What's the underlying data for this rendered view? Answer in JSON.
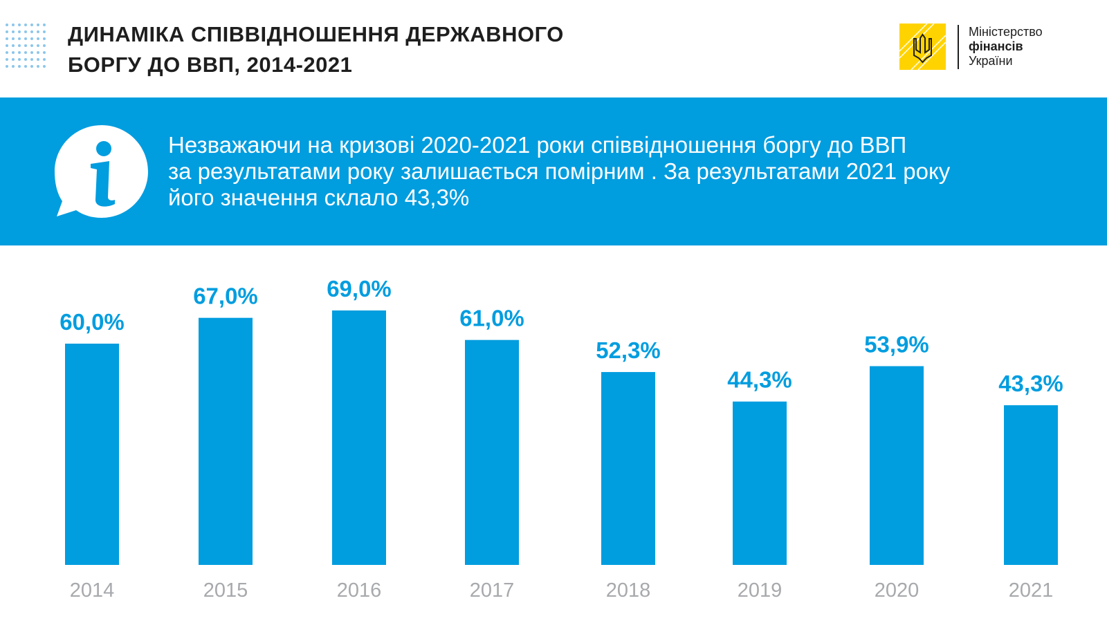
{
  "header": {
    "title_line1": "ДИНАМІКА СПІВВІДНОШЕННЯ ДЕРЖАВНОГО",
    "title_line2": "БОРГУ ДО ВВП, 2014-2021"
  },
  "logo": {
    "line1": "Міністерство",
    "line2": "фінансів",
    "line3": "України",
    "icon": "ukraine-trident-emblem",
    "color": "#ffd300"
  },
  "banner": {
    "icon": "info-speech-bubble-icon",
    "line1": "Незважаючи на кризові 2020-2021 роки співвідношення боргу до ВВП",
    "line2": "за результатами року залишається помірним . За результатами 2021 року",
    "line3": "його значення склало 43,3%",
    "background": "#009ddf"
  },
  "chart_data": {
    "type": "bar",
    "categories": [
      "2014",
      "2015",
      "2016",
      "2017",
      "2018",
      "2019",
      "2020",
      "2021"
    ],
    "values": [
      60.0,
      67.0,
      69.0,
      61.0,
      52.3,
      44.3,
      53.9,
      43.3
    ],
    "data_labels": [
      "60,0%",
      "67,0%",
      "69,0%",
      "61,0%",
      "52,3%",
      "44,3%",
      "53,9%",
      "43,3%"
    ],
    "title": "ДИНАМІКА СПІВВІДНОШЕННЯ ДЕРЖАВНОГО БОРГУ ДО ВВП, 2014-2021",
    "xlabel": "",
    "ylabel": "",
    "ylim": [
      0,
      69
    ],
    "grid": false,
    "bar_color": "#009ddf",
    "label_color": "#009ddf",
    "tick_color": "#a7a9ac"
  }
}
